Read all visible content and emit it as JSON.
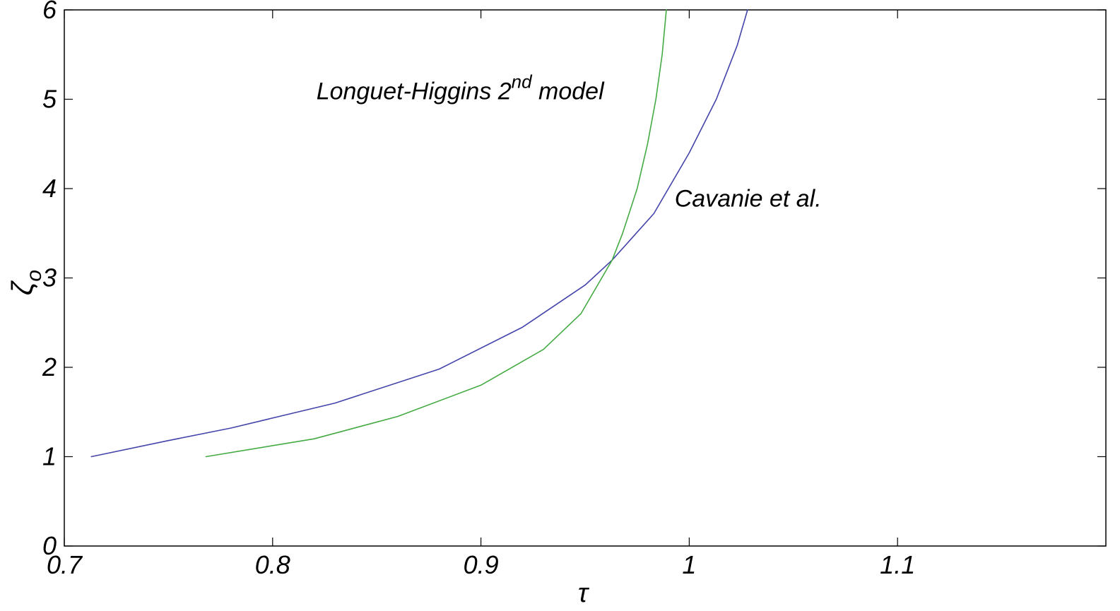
{
  "chart_data": {
    "type": "line",
    "title": "",
    "xlabel": "τ",
    "ylabel": "ζ",
    "ylabel_subscript": "o",
    "xlim": [
      0.7,
      1.2
    ],
    "ylim": [
      0,
      6
    ],
    "xticks": [
      0.7,
      0.8,
      0.9,
      1,
      1.1
    ],
    "xtick_labels": [
      "0.7",
      "0.8",
      "0.9",
      "1",
      "1.1"
    ],
    "yticks": [
      0,
      1,
      2,
      3,
      4,
      5,
      6
    ],
    "ytick_labels": [
      "0",
      "1",
      "2",
      "3",
      "4",
      "5",
      "6"
    ],
    "grid": false,
    "legend": "none",
    "series": [
      {
        "color": "#4444aa",
        "x": [
          0.713,
          0.75,
          0.78,
          0.83,
          0.88,
          0.92,
          0.95,
          0.963,
          0.983,
          1.0,
          1.013,
          1.023,
          1.028
        ],
        "y": [
          1.0,
          1.18,
          1.32,
          1.6,
          1.98,
          2.45,
          2.92,
          3.2,
          3.72,
          4.4,
          5.0,
          5.6,
          6.0
        ]
      },
      {
        "color": "#44aa44",
        "x": [
          0.768,
          0.82,
          0.86,
          0.9,
          0.93,
          0.948,
          0.958,
          0.963,
          0.968,
          0.975,
          0.98,
          0.984,
          0.987,
          0.989
        ],
        "y": [
          1.0,
          1.2,
          1.45,
          1.8,
          2.2,
          2.6,
          3.0,
          3.2,
          3.5,
          4.0,
          4.5,
          5.0,
          5.5,
          6.0
        ]
      }
    ],
    "annotations": [
      {
        "text": "Longuet-Higgins 2",
        "superscript": "nd",
        "suffix": " model",
        "x": 0.821,
        "y": 5.0
      },
      {
        "text": "Cavanie et al.",
        "x": 0.993,
        "y": 3.8
      }
    ]
  }
}
